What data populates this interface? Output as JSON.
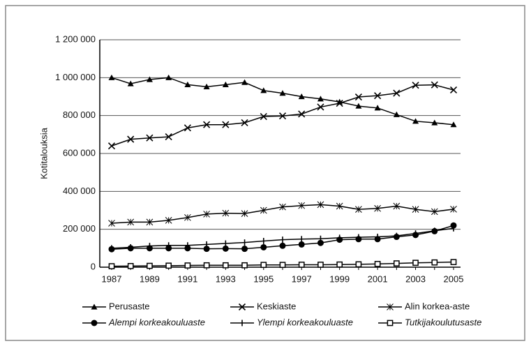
{
  "chart_data": {
    "type": "line",
    "y_axis_label": "Kotitalouksia",
    "categories": [
      "1987",
      null,
      "1989",
      null,
      "1991",
      null,
      "1993",
      null,
      "1995",
      null,
      "1997",
      null,
      "1999",
      null,
      "2001",
      null,
      "2003",
      null,
      "2005"
    ],
    "ylim": [
      0,
      1200000
    ],
    "yticks": [
      0,
      {
        "value": 200000,
        "label": "200 000"
      },
      {
        "value": 400000,
        "label": "400 000"
      },
      {
        "value": 600000,
        "label": "600 000"
      },
      {
        "value": 800000,
        "label": "800 000"
      },
      {
        "value": 1000000,
        "label": "1 000 000"
      },
      {
        "value": 1200000,
        "label": "1 200 000"
      }
    ],
    "grid": true,
    "legend": "bottom",
    "series": [
      {
        "name": "Perusaste",
        "color": "#000000",
        "marker": "triangle",
        "values": [
          1000000,
          968000,
          990000,
          1000000,
          963000,
          952000,
          963000,
          975000,
          932000,
          918000,
          900000,
          888000,
          872000,
          850000,
          840000,
          805000,
          770000,
          762000,
          752000
        ]
      },
      {
        "name": "Keskiaste",
        "color": "#000000",
        "marker": "x",
        "values": [
          640000,
          675000,
          682000,
          688000,
          735000,
          752000,
          752000,
          762000,
          795000,
          798000,
          808000,
          845000,
          865000,
          898000,
          905000,
          918000,
          960000,
          962000,
          935000
        ]
      },
      {
        "name": "Alin korkea-aste",
        "color": "#000000",
        "marker": "asterisk",
        "values": [
          232000,
          238000,
          238000,
          247000,
          262000,
          280000,
          285000,
          283000,
          300000,
          318000,
          325000,
          330000,
          322000,
          305000,
          310000,
          322000,
          305000,
          293000,
          306000
        ]
      },
      {
        "name": "Alempi korkeakouluaste",
        "color": "#000000",
        "marker": "circle",
        "values": [
          95000,
          100000,
          100000,
          100000,
          100000,
          97000,
          98000,
          97000,
          105000,
          113000,
          120000,
          128000,
          145000,
          148000,
          148000,
          160000,
          170000,
          190000,
          220000
        ]
      },
      {
        "name": "Ylempi korkeakouluaste",
        "color": "#000000",
        "marker": "bar",
        "values": [
          100000,
          105000,
          112000,
          115000,
          115000,
          120000,
          125000,
          130000,
          138000,
          145000,
          148000,
          150000,
          155000,
          158000,
          160000,
          165000,
          178000,
          192000,
          205000
        ]
      },
      {
        "name": "Tutkijakoulutusaste",
        "color": "#000000",
        "marker": "square",
        "values": [
          5000,
          6000,
          7000,
          8000,
          9000,
          10000,
          10000,
          10000,
          12000,
          12000,
          13000,
          13000,
          14000,
          15000,
          17000,
          20000,
          23000,
          25000,
          27000
        ]
      }
    ]
  }
}
